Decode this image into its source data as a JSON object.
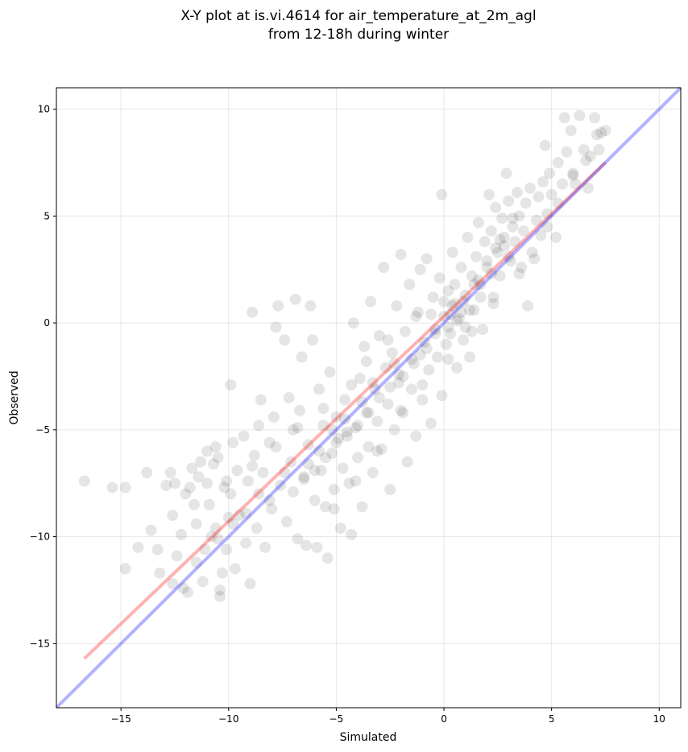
{
  "chart_data": {
    "type": "scatter",
    "title": "X-Y plot at is.vi.4614 for air_temperature_at_2m_agl",
    "subtitle": "from 12-18h during winter",
    "xlabel": "Simulated",
    "ylabel": "Observed",
    "xlim": [
      -18,
      11
    ],
    "ylim": [
      -18,
      11
    ],
    "xticks": [
      -15,
      -10,
      -5,
      0,
      5,
      10
    ],
    "yticks": [
      -15,
      -10,
      -5,
      0,
      5,
      10
    ],
    "xtick_labels": [
      "−15",
      "−10",
      "−5",
      "0",
      "5",
      "10"
    ],
    "ytick_labels": [
      "−15",
      "−10",
      "−5",
      "0",
      "5",
      "10"
    ],
    "grid": true,
    "legend": "none",
    "point_color": "#000000",
    "point_alpha": 0.1,
    "points": [
      [
        -16.7,
        -7.4
      ],
      [
        -15.4,
        -7.7
      ],
      [
        -14.8,
        -7.7
      ],
      [
        -14.8,
        -11.5
      ],
      [
        -14.2,
        -10.5
      ],
      [
        -13.8,
        -7.0
      ],
      [
        -13.6,
        -9.7
      ],
      [
        -13.3,
        -10.6
      ],
      [
        -13.2,
        -11.7
      ],
      [
        -12.9,
        -7.6
      ],
      [
        -12.7,
        -7.0
      ],
      [
        -12.6,
        -9.0
      ],
      [
        -12.6,
        -12.2
      ],
      [
        -12.5,
        -7.5
      ],
      [
        -12.4,
        -10.9
      ],
      [
        -12.2,
        -9.9
      ],
      [
        -12.1,
        -12.4
      ],
      [
        -12.0,
        -8.0
      ],
      [
        -11.8,
        -7.7
      ],
      [
        -11.9,
        -12.6
      ],
      [
        -11.7,
        -6.8
      ],
      [
        -11.5,
        -9.4
      ],
      [
        -11.5,
        -11.2
      ],
      [
        -11.4,
        -7.2
      ],
      [
        -11.3,
        -6.5
      ],
      [
        -11.2,
        -12.1
      ],
      [
        -11.0,
        -6.0
      ],
      [
        -11.0,
        -7.5
      ],
      [
        -10.9,
        -8.5
      ],
      [
        -10.8,
        -10.0
      ],
      [
        -10.7,
        -6.6
      ],
      [
        -10.6,
        -5.8
      ],
      [
        -10.6,
        -9.6
      ],
      [
        -10.5,
        -6.3
      ],
      [
        -10.4,
        -12.5
      ],
      [
        -10.4,
        -12.8
      ],
      [
        -10.3,
        -11.7
      ],
      [
        -10.2,
        -7.7
      ],
      [
        -10.1,
        -10.6
      ],
      [
        -10.0,
        -9.1
      ],
      [
        -9.9,
        -2.9
      ],
      [
        -9.9,
        -8.0
      ],
      [
        -9.8,
        -5.6
      ],
      [
        -9.7,
        -11.5
      ],
      [
        -9.6,
        -6.9
      ],
      [
        -9.5,
        -9.0
      ],
      [
        -9.3,
        -5.3
      ],
      [
        -9.2,
        -10.3
      ],
      [
        -9.1,
        -7.4
      ],
      [
        -9.0,
        -12.2
      ],
      [
        -8.9,
        0.5
      ],
      [
        -8.8,
        -6.2
      ],
      [
        -8.7,
        -9.6
      ],
      [
        -8.6,
        -4.8
      ],
      [
        -8.5,
        -3.6
      ],
      [
        -8.4,
        -7.0
      ],
      [
        -8.3,
        -10.5
      ],
      [
        -8.1,
        -5.6
      ],
      [
        -8.0,
        -8.7
      ],
      [
        -7.9,
        -4.4
      ],
      [
        -7.8,
        -0.2
      ],
      [
        -7.7,
        0.8
      ],
      [
        -7.6,
        -7.6
      ],
      [
        -7.4,
        -0.8
      ],
      [
        -7.3,
        -9.3
      ],
      [
        -7.2,
        -3.5
      ],
      [
        -7.1,
        -6.5
      ],
      [
        -7.0,
        -5.0
      ],
      [
        -6.9,
        1.1
      ],
      [
        -6.8,
        -10.1
      ],
      [
        -6.7,
        -4.1
      ],
      [
        -6.6,
        -1.6
      ],
      [
        -6.5,
        -7.2
      ],
      [
        -6.4,
        -10.4
      ],
      [
        -6.3,
        -5.7
      ],
      [
        -6.2,
        0.8
      ],
      [
        -6.1,
        -0.8
      ],
      [
        -6.0,
        -8.3
      ],
      [
        -5.9,
        -10.5
      ],
      [
        -5.8,
        -3.1
      ],
      [
        -5.7,
        -6.9
      ],
      [
        -5.6,
        -4.8
      ],
      [
        -5.5,
        -8.6
      ],
      [
        -5.4,
        -11.0
      ],
      [
        -5.3,
        -2.3
      ],
      [
        -5.2,
        -6.1
      ],
      [
        -5.1,
        -7.8
      ],
      [
        -5.0,
        -4.4
      ],
      [
        -4.9,
        -5.4
      ],
      [
        -4.8,
        -9.6
      ],
      [
        -4.7,
        -6.8
      ],
      [
        -4.6,
        -3.6
      ],
      [
        -4.5,
        -5.1
      ],
      [
        -4.4,
        -7.5
      ],
      [
        -4.3,
        -9.9
      ],
      [
        -4.2,
        0.0
      ],
      [
        -4.1,
        -4.9
      ],
      [
        -4.0,
        -6.3
      ],
      [
        -3.9,
        -2.6
      ],
      [
        -3.8,
        -8.6
      ],
      [
        -3.7,
        -1.1
      ],
      [
        -3.6,
        -4.2
      ],
      [
        -3.5,
        -5.8
      ],
      [
        -3.4,
        1.0
      ],
      [
        -3.3,
        -7.0
      ],
      [
        -3.2,
        -3.1
      ],
      [
        -3.1,
        -4.6
      ],
      [
        -3.0,
        -0.6
      ],
      [
        -2.9,
        -5.9
      ],
      [
        -2.8,
        2.6
      ],
      [
        -2.7,
        -2.1
      ],
      [
        -2.6,
        -3.8
      ],
      [
        -2.5,
        -7.8
      ],
      [
        -2.4,
        -1.4
      ],
      [
        -2.3,
        -5.0
      ],
      [
        -2.2,
        0.8
      ],
      [
        -2.1,
        -2.8
      ],
      [
        -2.0,
        3.2
      ],
      [
        -1.9,
        -4.2
      ],
      [
        -1.8,
        -0.4
      ],
      [
        -1.7,
        -6.5
      ],
      [
        -1.6,
        1.8
      ],
      [
        -1.5,
        -3.1
      ],
      [
        -1.4,
        -1.9
      ],
      [
        -1.3,
        -5.3
      ],
      [
        -1.2,
        0.5
      ],
      [
        -1.1,
        2.5
      ],
      [
        -1.0,
        -3.6
      ],
      [
        -0.9,
        -0.9
      ],
      [
        -0.8,
        3.0
      ],
      [
        -0.7,
        -2.2
      ],
      [
        -0.6,
        -4.7
      ],
      [
        -0.5,
        1.2
      ],
      [
        -0.4,
        -0.3
      ],
      [
        -0.3,
        -1.6
      ],
      [
        -0.2,
        2.1
      ],
      [
        -0.1,
        -3.4
      ],
      [
        0.0,
        0.3
      ],
      [
        -0.1,
        6.0
      ],
      [
        0.1,
        -1.0
      ],
      [
        0.2,
        1.5
      ],
      [
        0.3,
        -0.5
      ],
      [
        0.4,
        3.3
      ],
      [
        0.5,
        0.9
      ],
      [
        0.6,
        -2.1
      ],
      [
        0.7,
        0.2
      ],
      [
        0.8,
        2.6
      ],
      [
        0.9,
        -0.8
      ],
      [
        1.0,
        1.3
      ],
      [
        1.1,
        4.0
      ],
      [
        1.2,
        -1.6
      ],
      [
        1.3,
        2.2
      ],
      [
        1.4,
        0.6
      ],
      [
        1.5,
        3.1
      ],
      [
        1.6,
        4.7
      ],
      [
        1.7,
        1.8
      ],
      [
        1.8,
        -0.3
      ],
      [
        1.9,
        3.8
      ],
      [
        2.0,
        2.6
      ],
      [
        2.1,
        6.0
      ],
      [
        2.2,
        4.3
      ],
      [
        2.3,
        1.2
      ],
      [
        2.4,
        5.4
      ],
      [
        2.5,
        3.3
      ],
      [
        2.6,
        2.2
      ],
      [
        2.7,
        4.9
      ],
      [
        2.8,
        3.6
      ],
      [
        2.9,
        7.0
      ],
      [
        3.0,
        5.7
      ],
      [
        3.1,
        2.9
      ],
      [
        3.2,
        4.5
      ],
      [
        3.3,
        3.8
      ],
      [
        3.4,
        6.1
      ],
      [
        3.5,
        5.0
      ],
      [
        3.6,
        2.6
      ],
      [
        3.7,
        4.3
      ],
      [
        3.8,
        5.6
      ],
      [
        3.9,
        0.8
      ],
      [
        4.0,
        6.3
      ],
      [
        4.1,
        3.3
      ],
      [
        4.3,
        4.8
      ],
      [
        4.4,
        5.9
      ],
      [
        4.5,
        4.1
      ],
      [
        4.6,
        6.6
      ],
      [
        4.7,
        8.3
      ],
      [
        4.8,
        5.1
      ],
      [
        4.9,
        7.0
      ],
      [
        5.0,
        6.0
      ],
      [
        5.2,
        4.0
      ],
      [
        5.3,
        7.5
      ],
      [
        5.5,
        6.5
      ],
      [
        5.6,
        9.6
      ],
      [
        5.7,
        8.0
      ],
      [
        5.9,
        9.0
      ],
      [
        6.0,
        7.0
      ],
      [
        6.1,
        6.5
      ],
      [
        6.3,
        9.7
      ],
      [
        6.5,
        8.1
      ],
      [
        6.7,
        6.3
      ],
      [
        6.8,
        7.8
      ],
      [
        7.0,
        9.6
      ],
      [
        7.1,
        8.8
      ],
      [
        7.3,
        8.9
      ],
      [
        7.5,
        9.0
      ],
      [
        0.3,
        0.4
      ],
      [
        0.6,
        0.1
      ],
      [
        0.4,
        0.8
      ],
      [
        0.8,
        0.5
      ],
      [
        0.2,
        -0.2
      ],
      [
        0.9,
        1.0
      ],
      [
        1.2,
        0.6
      ],
      [
        -0.4,
        -0.5
      ],
      [
        -0.8,
        -1.2
      ],
      [
        -1.1,
        -1.5
      ],
      [
        -1.5,
        -1.7
      ],
      [
        -2.1,
        -2.4
      ],
      [
        -2.5,
        -3.0
      ],
      [
        -3.0,
        -3.5
      ],
      [
        -3.5,
        -4.2
      ],
      [
        -4.0,
        -4.8
      ],
      [
        -4.5,
        -5.3
      ],
      [
        -5.0,
        -5.6
      ],
      [
        -5.5,
        -6.3
      ],
      [
        -6.0,
        -6.9
      ],
      [
        -6.5,
        -7.3
      ],
      [
        -7.0,
        -7.9
      ],
      [
        1.6,
        2.0
      ],
      [
        2.0,
        2.9
      ],
      [
        2.4,
        3.5
      ],
      [
        2.8,
        4.0
      ],
      [
        3.2,
        4.9
      ],
      [
        1.4,
        1.8
      ],
      [
        1.7,
        1.2
      ],
      [
        2.2,
        2.3
      ],
      [
        2.6,
        3.9
      ],
      [
        3.0,
        3.1
      ],
      [
        -1.9,
        -2.5
      ],
      [
        -2.3,
        -1.9
      ],
      [
        -3.3,
        -2.8
      ],
      [
        -3.8,
        -3.7
      ],
      [
        -4.6,
        -4.5
      ],
      [
        -5.2,
        -5.0
      ],
      [
        -5.8,
        -6.0
      ],
      [
        -6.3,
        -6.6
      ],
      [
        -7.4,
        -7.0
      ],
      [
        -8.1,
        -8.3
      ],
      [
        -8.6,
        -8.0
      ],
      [
        -9.2,
        -8.9
      ],
      [
        -9.8,
        -9.4
      ],
      [
        -10.5,
        -10.1
      ],
      [
        -11.1,
        -10.6
      ],
      [
        0.0,
        1.0
      ],
      [
        0.5,
        1.8
      ],
      [
        1.0,
        -0.2
      ],
      [
        -0.6,
        0.4
      ],
      [
        -1.3,
        0.3
      ],
      [
        -2.6,
        -0.8
      ],
      [
        -3.6,
        -1.8
      ],
      [
        -4.3,
        -2.9
      ],
      [
        -5.6,
        -4.0
      ],
      [
        -6.8,
        -4.9
      ],
      [
        -7.8,
        -5.8
      ],
      [
        -8.9,
        -6.7
      ],
      [
        -10.1,
        -7.4
      ],
      [
        -11.6,
        -8.5
      ],
      [
        2.3,
        0.9
      ],
      [
        3.5,
        2.3
      ],
      [
        4.2,
        3.0
      ],
      [
        4.8,
        4.5
      ],
      [
        5.3,
        5.6
      ],
      [
        6.0,
        6.9
      ],
      [
        6.6,
        7.6
      ],
      [
        7.2,
        8.1
      ],
      [
        -2.0,
        -4.1
      ],
      [
        -1.0,
        -2.9
      ],
      [
        0.2,
        -1.7
      ],
      [
        1.3,
        -0.4
      ],
      [
        -3.1,
        -6.0
      ],
      [
        -4.1,
        -7.4
      ],
      [
        -5.1,
        -8.7
      ]
    ],
    "lines": [
      {
        "color": "#ff0000",
        "alpha": 0.3,
        "x": [
          -16.7,
          7.5
        ],
        "y": [
          -15.7,
          7.5
        ]
      },
      {
        "color": "#0000ff",
        "alpha": 0.3,
        "x": [
          -18,
          11
        ],
        "y": [
          -18,
          11
        ]
      }
    ]
  }
}
